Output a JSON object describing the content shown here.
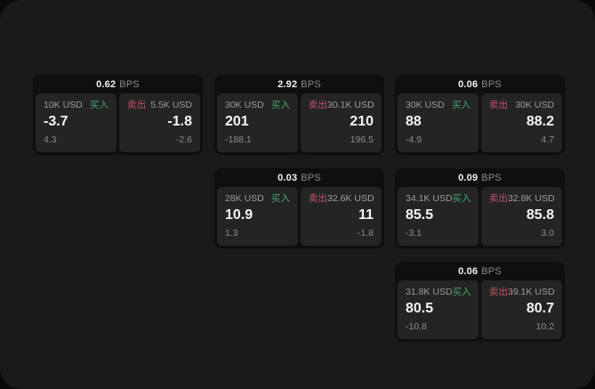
{
  "labels": {
    "bps_unit": "BPS",
    "buy": "买入",
    "sell": "卖出"
  },
  "colors": {
    "buy_green": "#46a56c",
    "sell_pink": "#c25068",
    "window_bg": "#1a1a1a",
    "card_bg": "#0f0f0f",
    "panel_bg": "#242424"
  },
  "cards": [
    {
      "bps": "0.62",
      "row": 1,
      "col": 1,
      "buy": {
        "amount": "10K USD",
        "price": "-3.7",
        "change": "4.3"
      },
      "sell": {
        "amount": "5.5K USD",
        "price": "-1.8",
        "change": "-2.6"
      }
    },
    {
      "bps": "2.92",
      "row": 1,
      "col": 2,
      "buy": {
        "amount": "30K USD",
        "price": "201",
        "change": "-188.1"
      },
      "sell": {
        "amount": "30.1K USD",
        "price": "210",
        "change": "196.5"
      }
    },
    {
      "bps": "0.06",
      "row": 1,
      "col": 3,
      "buy": {
        "amount": "30K USD",
        "price": "88",
        "change": "-4.9"
      },
      "sell": {
        "amount": "30K USD",
        "price": "88.2",
        "change": "4.7"
      }
    },
    {
      "bps": "0.03",
      "row": 2,
      "col": 2,
      "buy": {
        "amount": "28K USD",
        "price": "10.9",
        "change": "1.3"
      },
      "sell": {
        "amount": "32.6K USD",
        "price": "11",
        "change": "-1.8"
      }
    },
    {
      "bps": "0.09",
      "row": 2,
      "col": 3,
      "buy": {
        "amount": "34.1K USD",
        "price": "85.5",
        "change": "-3.1"
      },
      "sell": {
        "amount": "32.8K USD",
        "price": "85.8",
        "change": "3.0"
      }
    },
    {
      "bps": "0.06",
      "row": 3,
      "col": 3,
      "buy": {
        "amount": "31.8K USD",
        "price": "80.5",
        "change": "-10.8"
      },
      "sell": {
        "amount": "39.1K USD",
        "price": "80.7",
        "change": "10.2"
      }
    }
  ]
}
